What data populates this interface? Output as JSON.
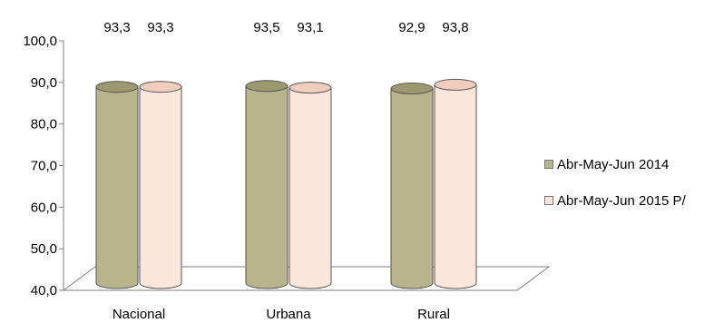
{
  "chart_data": {
    "type": "bar",
    "style": "3d-cylinder",
    "categories": [
      "Nacional",
      "Urbana",
      "Rural"
    ],
    "series": [
      {
        "name": "Abr-May-Jun 2014",
        "values": [
          93.3,
          93.5,
          92.9
        ],
        "color": "#b8b48c",
        "top_color": "#9c9870"
      },
      {
        "name": "Abr-May-Jun 2015 P/",
        "values": [
          93.3,
          93.1,
          93.8
        ],
        "color": "#fbe6dc",
        "top_color": "#f0cdbd"
      }
    ],
    "data_labels": [
      [
        "93,3",
        "93,5",
        "92,9"
      ],
      [
        "93,3",
        "93,1",
        "93,8"
      ]
    ],
    "y_ticks": [
      "40,0",
      "50,0",
      "60,0",
      "70,0",
      "80,0",
      "90,0",
      "100,0"
    ],
    "ylim": [
      40,
      100
    ],
    "title": "",
    "xlabel": "",
    "ylabel": "",
    "legend_position": "right",
    "grid": false
  }
}
